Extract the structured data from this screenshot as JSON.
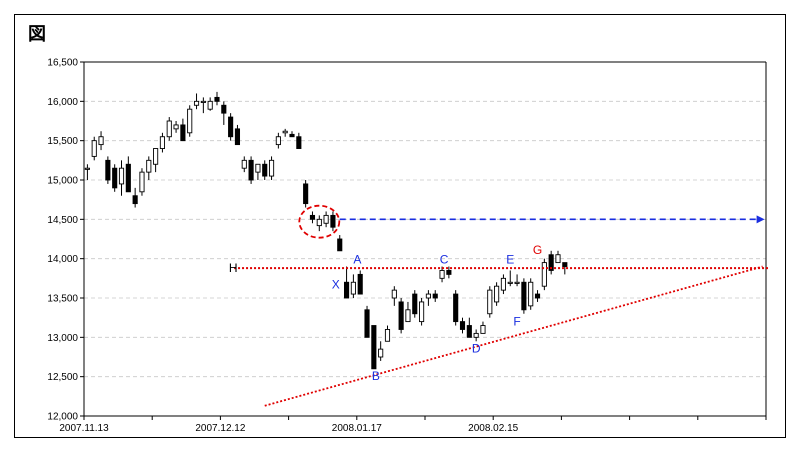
{
  "figure_label": "図",
  "chart_data": {
    "type": "candlestick",
    "y_ticks": [
      "16,500",
      "16,000",
      "15,500",
      "15,000",
      "14,500",
      "14,000",
      "13,500",
      "13,000",
      "12,500",
      "12,000"
    ],
    "y_tick_values": [
      16500,
      16000,
      15500,
      15000,
      14500,
      14000,
      13500,
      13000,
      12500,
      12000
    ],
    "ylim": [
      12000,
      16500
    ],
    "x_ticks": [
      "2007.11.13",
      "2007.12.12",
      "2008.01.17",
      "2008.02.15"
    ],
    "x_tick_index": [
      0,
      20,
      40,
      60
    ],
    "n_slots": 100,
    "grid": "horizontal-dashed",
    "candles": [
      [
        15150,
        15200,
        15000,
        15150
      ],
      [
        15300,
        15550,
        15250,
        15500
      ],
      [
        15450,
        15620,
        15380,
        15550
      ],
      [
        15250,
        15300,
        14950,
        15000
      ],
      [
        15150,
        15200,
        14850,
        14900
      ],
      [
        14950,
        15250,
        14800,
        15150
      ],
      [
        15200,
        15300,
        14850,
        14850
      ],
      [
        14800,
        14900,
        14650,
        14700
      ],
      [
        14850,
        15150,
        14800,
        15100
      ],
      [
        15100,
        15300,
        15000,
        15250
      ],
      [
        15200,
        15400,
        15100,
        15400
      ],
      [
        15400,
        15600,
        15350,
        15550
      ],
      [
        15550,
        15800,
        15500,
        15750
      ],
      [
        15650,
        15750,
        15600,
        15700
      ],
      [
        15700,
        15780,
        15500,
        15500
      ],
      [
        15600,
        15950,
        15550,
        15900
      ],
      [
        15950,
        16100,
        15900,
        16000
      ],
      [
        16000,
        16050,
        15850,
        16000
      ],
      [
        15900,
        16050,
        15880,
        16000
      ],
      [
        16050,
        16120,
        15950,
        16000
      ],
      [
        15950,
        16000,
        15700,
        15850
      ],
      [
        15800,
        15850,
        15500,
        15550
      ],
      [
        15650,
        15700,
        15450,
        15450
      ],
      [
        15150,
        15300,
        15100,
        15250
      ],
      [
        15250,
        15300,
        14950,
        15000
      ],
      [
        15100,
        15200,
        15000,
        15200
      ],
      [
        15200,
        15250,
        15000,
        15050
      ],
      [
        15050,
        15300,
        15000,
        15250
      ],
      [
        15450,
        15600,
        15400,
        15550
      ],
      [
        15600,
        15650,
        15550,
        15620
      ],
      [
        15580,
        15620,
        15550,
        15550
      ],
      [
        15550,
        15600,
        15400,
        15400
      ],
      [
        14950,
        15000,
        14650,
        14700
      ],
      [
        14550,
        14600,
        14450,
        14500
      ],
      [
        14420,
        14550,
        14350,
        14500
      ],
      [
        14450,
        14600,
        14400,
        14550
      ],
      [
        14550,
        14600,
        14350,
        14400
      ],
      [
        14250,
        14300,
        14100,
        14100
      ],
      [
        13700,
        13900,
        13500,
        13500
      ],
      [
        13550,
        13800,
        13500,
        13700
      ],
      [
        13800,
        13850,
        13550,
        13550
      ],
      [
        13350,
        13400,
        13000,
        13000
      ],
      [
        13150,
        13150,
        12600,
        12600
      ],
      [
        12750,
        12950,
        12700,
        12850
      ],
      [
        12950,
        13150,
        12950,
        13100
      ],
      [
        13500,
        13650,
        13400,
        13600
      ],
      [
        13450,
        13500,
        13050,
        13100
      ],
      [
        13200,
        13450,
        13200,
        13350
      ],
      [
        13550,
        13600,
        13250,
        13300
      ],
      [
        13200,
        13500,
        13150,
        13450
      ],
      [
        13500,
        13600,
        13400,
        13550
      ],
      [
        13550,
        13600,
        13450,
        13500
      ],
      [
        13750,
        13900,
        13700,
        13850
      ],
      [
        13850,
        13900,
        13750,
        13800
      ],
      [
        13550,
        13600,
        13150,
        13200
      ],
      [
        13200,
        13250,
        13050,
        13100
      ],
      [
        13150,
        13250,
        13000,
        13000
      ],
      [
        13000,
        13100,
        12950,
        13050
      ],
      [
        13050,
        13200,
        13050,
        13150
      ],
      [
        13300,
        13650,
        13250,
        13600
      ],
      [
        13450,
        13700,
        13400,
        13650
      ],
      [
        13600,
        13800,
        13550,
        13750
      ],
      [
        13700,
        13850,
        13650,
        13700
      ],
      [
        13700,
        13800,
        13650,
        13700
      ],
      [
        13700,
        13750,
        13300,
        13350
      ],
      [
        13400,
        13750,
        13350,
        13700
      ],
      [
        13550,
        13600,
        13450,
        13500
      ],
      [
        13650,
        14000,
        13600,
        13950
      ],
      [
        14050,
        14100,
        13800,
        13850
      ],
      [
        13950,
        14100,
        13950,
        14050
      ],
      [
        13950,
        13950,
        13800,
        13900
      ]
    ],
    "annotations": {
      "labels": [
        "X",
        "A",
        "B",
        "C",
        "D",
        "E",
        "F",
        "G",
        "H"
      ],
      "h_level": 13880,
      "h_line_color": "#e00000",
      "trend_line": {
        "from": [
          26,
          12130
        ],
        "to": [
          99,
          13900
        ],
        "color": "#e00000"
      },
      "arrow": {
        "from": [
          37,
          14500
        ],
        "to": [
          99,
          14500
        ],
        "color": "#1a2ee0"
      },
      "circle": {
        "center": [
          34,
          14470
        ],
        "color": "#e00000"
      },
      "label_colors": {
        "blue": "#1a2ee0",
        "red": "#e00000",
        "dark": "#000000"
      }
    }
  }
}
